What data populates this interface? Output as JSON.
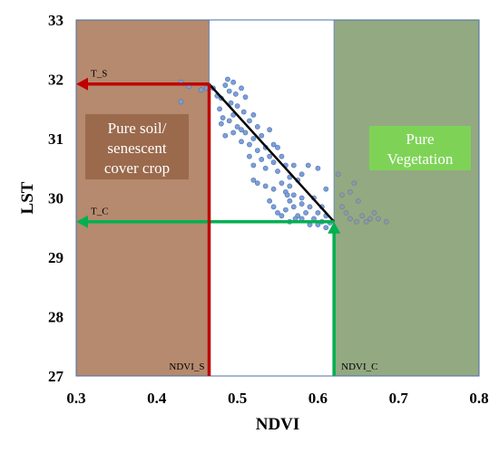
{
  "chart_data": {
    "type": "scatter",
    "title": "",
    "xlabel": "NDVI",
    "ylabel": "LST",
    "xlim": [
      0.3,
      0.8
    ],
    "ylim": [
      27,
      33
    ],
    "x_ticks": [
      "0.3",
      "0.4",
      "0.5",
      "0.6",
      "0.7",
      "0.8"
    ],
    "y_ticks": [
      "27",
      "28",
      "29",
      "30",
      "31",
      "32",
      "33"
    ],
    "grid": false,
    "zones": {
      "soil": {
        "x_range": [
          0.3,
          0.465
        ],
        "label_lines": [
          "Pure soil/",
          "senescent",
          "cover crop"
        ],
        "fill": "#b58a6e",
        "label_fill": "#9b6a4d"
      },
      "vegetation": {
        "x_range": [
          0.62,
          0.8
        ],
        "label_lines": [
          "Pure",
          "Vegetation"
        ],
        "fill": "#93a982",
        "label_fill": "#7ed357"
      }
    },
    "markers": {
      "T_S": {
        "label": "T_S",
        "value": 31.92
      },
      "T_C": {
        "label": "T_C",
        "value": 29.6
      },
      "NDVI_S": {
        "label": "NDVI_S",
        "value": 0.465
      },
      "NDVI_C": {
        "label": "NDVI_C",
        "value": 0.62
      }
    },
    "dry_edge": [
      [
        0.465,
        31.92
      ],
      [
        0.62,
        29.6
      ]
    ],
    "series": [
      {
        "points": [
          [
            0.43,
            31.95
          ],
          [
            0.43,
            31.62
          ],
          [
            0.44,
            31.88
          ],
          [
            0.455,
            31.82
          ],
          [
            0.462,
            31.85
          ],
          [
            0.47,
            31.85
          ],
          [
            0.475,
            31.72
          ],
          [
            0.48,
            31.68
          ],
          [
            0.485,
            31.9
          ],
          [
            0.488,
            32.0
          ],
          [
            0.49,
            31.8
          ],
          [
            0.492,
            31.6
          ],
          [
            0.495,
            31.95
          ],
          [
            0.498,
            31.75
          ],
          [
            0.5,
            31.55
          ],
          [
            0.505,
            31.85
          ],
          [
            0.508,
            31.45
          ],
          [
            0.51,
            31.7
          ],
          [
            0.478,
            31.5
          ],
          [
            0.482,
            31.35
          ],
          [
            0.49,
            31.3
          ],
          [
            0.495,
            31.4
          ],
          [
            0.5,
            31.2
          ],
          [
            0.505,
            31.15
          ],
          [
            0.51,
            31.1
          ],
          [
            0.515,
            31.3
          ],
          [
            0.52,
            31.4
          ],
          [
            0.525,
            31.2
          ],
          [
            0.48,
            31.25
          ],
          [
            0.485,
            31.05
          ],
          [
            0.495,
            31.1
          ],
          [
            0.505,
            30.95
          ],
          [
            0.515,
            30.9
          ],
          [
            0.52,
            31.0
          ],
          [
            0.525,
            30.8
          ],
          [
            0.53,
            31.05
          ],
          [
            0.535,
            30.85
          ],
          [
            0.54,
            31.15
          ],
          [
            0.545,
            30.9
          ],
          [
            0.53,
            30.65
          ],
          [
            0.535,
            30.5
          ],
          [
            0.54,
            30.7
          ],
          [
            0.545,
            30.6
          ],
          [
            0.55,
            30.45
          ],
          [
            0.555,
            30.7
          ],
          [
            0.56,
            30.55
          ],
          [
            0.565,
            30.35
          ],
          [
            0.55,
            30.85
          ],
          [
            0.52,
            30.3
          ],
          [
            0.525,
            30.25
          ],
          [
            0.535,
            30.2
          ],
          [
            0.545,
            30.15
          ],
          [
            0.555,
            30.25
          ],
          [
            0.56,
            30.1
          ],
          [
            0.565,
            30.2
          ],
          [
            0.57,
            30.05
          ],
          [
            0.575,
            30.3
          ],
          [
            0.58,
            30.0
          ],
          [
            0.54,
            29.95
          ],
          [
            0.545,
            29.85
          ],
          [
            0.55,
            29.75
          ],
          [
            0.56,
            29.8
          ],
          [
            0.565,
            29.95
          ],
          [
            0.57,
            29.85
          ],
          [
            0.575,
            29.7
          ],
          [
            0.58,
            29.9
          ],
          [
            0.585,
            29.75
          ],
          [
            0.59,
            29.85
          ],
          [
            0.595,
            29.65
          ],
          [
            0.6,
            29.75
          ],
          [
            0.605,
            29.6
          ],
          [
            0.61,
            29.7
          ],
          [
            0.6,
            29.55
          ],
          [
            0.59,
            29.55
          ],
          [
            0.58,
            29.65
          ],
          [
            0.565,
            29.6
          ],
          [
            0.555,
            29.7
          ],
          [
            0.61,
            29.5
          ],
          [
            0.615,
            29.58
          ],
          [
            0.605,
            29.85
          ],
          [
            0.595,
            30.0
          ],
          [
            0.588,
            30.55
          ],
          [
            0.6,
            30.5
          ],
          [
            0.61,
            30.15
          ],
          [
            0.57,
            30.55
          ],
          [
            0.58,
            30.4
          ],
          [
            0.52,
            30.55
          ],
          [
            0.515,
            30.7
          ],
          [
            0.562,
            30.05
          ],
          [
            0.572,
            29.65
          ],
          [
            0.625,
            30.4
          ],
          [
            0.63,
            29.85
          ],
          [
            0.635,
            29.75
          ],
          [
            0.64,
            29.65
          ],
          [
            0.645,
            30.25
          ],
          [
            0.648,
            29.6
          ],
          [
            0.65,
            29.95
          ],
          [
            0.655,
            29.7
          ],
          [
            0.66,
            29.6
          ],
          [
            0.665,
            29.65
          ],
          [
            0.67,
            29.75
          ],
          [
            0.675,
            29.65
          ],
          [
            0.685,
            29.6
          ],
          [
            0.63,
            30.05
          ],
          [
            0.64,
            30.1
          ]
        ]
      }
    ]
  }
}
